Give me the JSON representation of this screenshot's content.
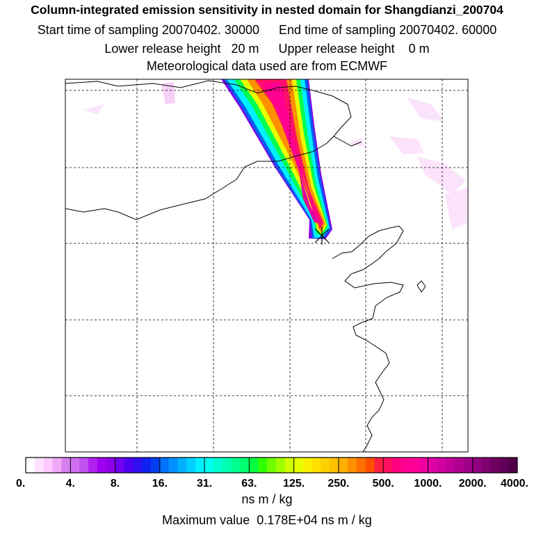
{
  "header": {
    "title": "Column-integrated emission sensitivity in nested domain for Shangdianzi_200704",
    "start_label": "Start time of sampling 20070402. 30000",
    "end_label": "End time of sampling 20070402. 60000",
    "lower_label": "Lower release height   20 m",
    "upper_label": "Upper release height    0 m",
    "met_label": "Meteorological data used are from ECMWF"
  },
  "chart_data": {
    "type": "heatmap",
    "title": "Column-integrated emission sensitivity in nested domain for Shangdianzi_200704",
    "colorbar": {
      "tick_labels": [
        "0.",
        "4.",
        "8.",
        "16.",
        "31.",
        "63.",
        "125.",
        "250.",
        "500.",
        "1000.",
        "2000.",
        "4000."
      ],
      "tick_values": [
        0,
        4,
        8,
        16,
        31,
        63,
        125,
        250,
        500,
        1000,
        2000,
        4000
      ],
      "colors": [
        [
          "#ffffff",
          "#ffe0ff",
          "#ffc8ff",
          "#f0a8f8",
          "#d880f0"
        ],
        [
          "#d070f0",
          "#c050f0",
          "#b020f0",
          "#a000f0",
          "#9000e8"
        ],
        [
          "#7000f0",
          "#5000f0",
          "#3010f0",
          "#1020f0",
          "#0040f0"
        ],
        [
          "#0070ff",
          "#0090ff",
          "#00b0ff",
          "#00d0ff",
          "#00f0ff"
        ],
        [
          "#00ffee",
          "#00ffd0",
          "#00ffb0",
          "#00ff90",
          "#00ff70"
        ],
        [
          "#00ff40",
          "#30ff00",
          "#70ff00",
          "#a0ff00",
          "#d0ff00"
        ],
        [
          "#e8ff00",
          "#f8f000",
          "#ffe000",
          "#ffd000",
          "#ffc000"
        ],
        [
          "#ffb000",
          "#ff9000",
          "#ff7000",
          "#ff5000",
          "#ff2040"
        ],
        [
          "#ff1060",
          "#ff0080",
          "#ff0090",
          "#ff0098",
          "#f000a0"
        ],
        [
          "#e000a8",
          "#d000a0",
          "#c00098",
          "#b00090",
          "#a00088"
        ],
        [
          "#900080",
          "#800070",
          "#700060",
          "#600058",
          "#500048"
        ]
      ],
      "unit": "ns m / kg"
    },
    "max_value": {
      "label": "Maximum value",
      "value": "0.178E+04",
      "unit": "ns m / kg"
    },
    "receptor": "Shangdianzi",
    "grid": true
  },
  "footer": {
    "unit_label": "ns m / kg",
    "max_text": "Maximum value  0.178E+04 ns m / kg"
  }
}
